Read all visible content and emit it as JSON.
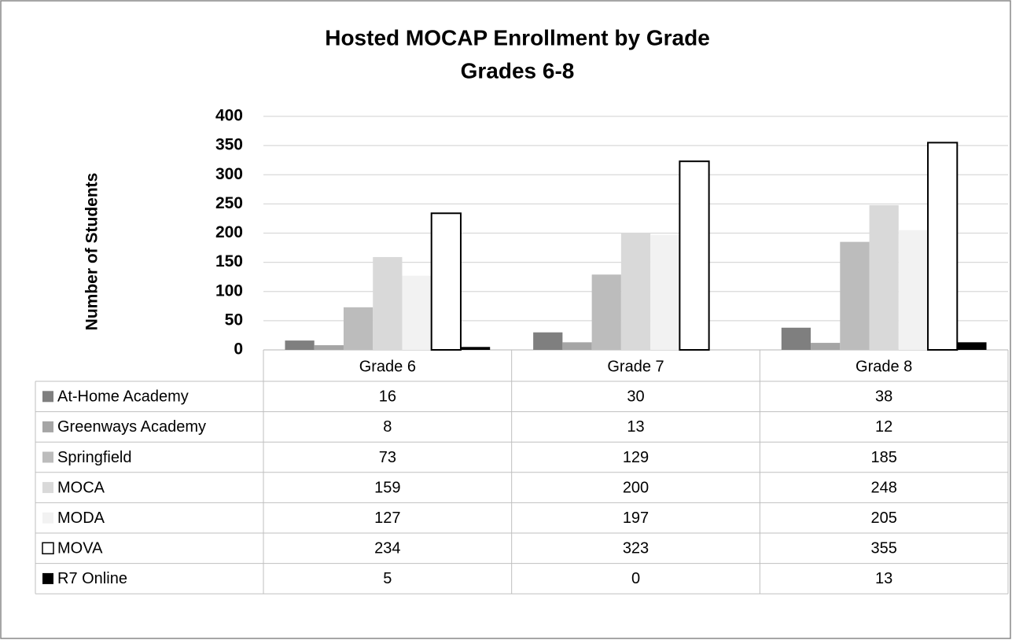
{
  "chart_data": {
    "type": "bar",
    "title": "Hosted MOCAP Enrollment by Grade",
    "subtitle": "Grades 6-8",
    "y_label": "Number of Students",
    "categories": [
      "Grade 6",
      "Grade 7",
      "Grade 8"
    ],
    "series": [
      {
        "name": "At-Home Academy",
        "color": "#7f7f7f",
        "values": [
          16,
          30,
          38
        ]
      },
      {
        "name": "Greenways Academy",
        "color": "#a5a5a5",
        "values": [
          8,
          13,
          12
        ]
      },
      {
        "name": "Springfield",
        "color": "#bcbcbc",
        "values": [
          73,
          129,
          185
        ]
      },
      {
        "name": "MOCA",
        "color": "#d9d9d9",
        "values": [
          159,
          200,
          248
        ]
      },
      {
        "name": "MODA",
        "color": "#f2f2f2",
        "values": [
          127,
          197,
          205
        ]
      },
      {
        "name": "MOVA",
        "color": "#ffffff",
        "edgecolor": "#000000",
        "values": [
          234,
          323,
          355
        ]
      },
      {
        "name": "R7 Online",
        "color": "#000000",
        "values": [
          5,
          0,
          13
        ]
      }
    ],
    "ylim": [
      0,
      400
    ],
    "yticks": [
      0,
      50,
      100,
      150,
      200,
      250,
      300,
      350,
      400
    ],
    "grid": true
  }
}
